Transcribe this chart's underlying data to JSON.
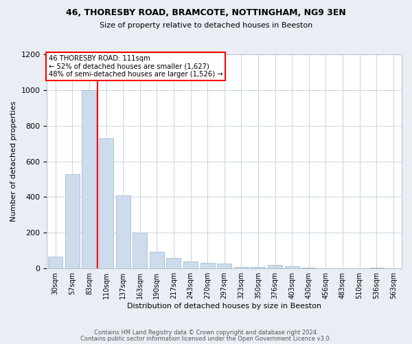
{
  "title1": "46, THORESBY ROAD, BRAMCOTE, NOTTINGHAM, NG9 3EN",
  "title2": "Size of property relative to detached houses in Beeston",
  "xlabel": "Distribution of detached houses by size in Beeston",
  "ylabel": "Number of detached properties",
  "categories": [
    "30sqm",
    "57sqm",
    "83sqm",
    "110sqm",
    "137sqm",
    "163sqm",
    "190sqm",
    "217sqm",
    "243sqm",
    "270sqm",
    "297sqm",
    "323sqm",
    "350sqm",
    "376sqm",
    "403sqm",
    "430sqm",
    "456sqm",
    "483sqm",
    "510sqm",
    "536sqm",
    "563sqm"
  ],
  "values": [
    65,
    530,
    1000,
    730,
    410,
    200,
    95,
    60,
    40,
    30,
    28,
    10,
    8,
    20,
    12,
    3,
    2,
    0,
    0,
    5,
    2
  ],
  "bar_color": "#ccdcec",
  "bar_edge_color": "#aabbcc",
  "property_line_x": 2.5,
  "annotation_text": "46 THORESBY ROAD: 111sqm\n← 52% of detached houses are smaller (1,627)\n48% of semi-detached houses are larger (1,526) →",
  "annotation_box_color": "white",
  "annotation_box_edge_color": "red",
  "vline_color": "red",
  "footer1": "Contains HM Land Registry data © Crown copyright and database right 2024.",
  "footer2": "Contains public sector information licensed under the Open Government Licence v3.0.",
  "bg_color": "#e8eef4",
  "plot_bg_color": "white",
  "ylim": [
    0,
    1200
  ],
  "grid_color": "#c8d4de",
  "yticks": [
    0,
    200,
    400,
    600,
    800,
    1000,
    1200
  ]
}
